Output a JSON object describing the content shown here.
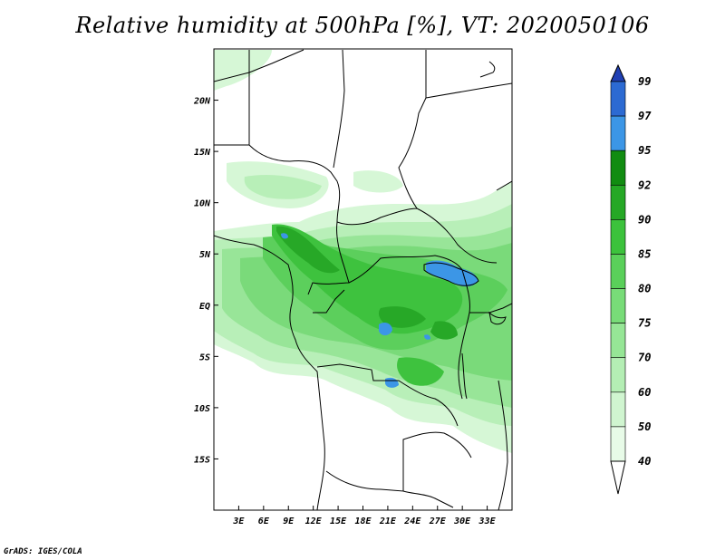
{
  "title": "Relative humidity at 500hPa [%], VT: 2020050106",
  "credit": "GrADS: IGES/COLA",
  "map": {
    "lon_range": [
      0,
      36
    ],
    "lat_range": [
      -20,
      25
    ],
    "x_ticks": [
      {
        "value": 3,
        "label": "3E"
      },
      {
        "value": 6,
        "label": "6E"
      },
      {
        "value": 9,
        "label": "9E"
      },
      {
        "value": 12,
        "label": "12E"
      },
      {
        "value": 15,
        "label": "15E"
      },
      {
        "value": 18,
        "label": "18E"
      },
      {
        "value": 21,
        "label": "21E"
      },
      {
        "value": 24,
        "label": "24E"
      },
      {
        "value": 27,
        "label": "27E"
      },
      {
        "value": 30,
        "label": "30E"
      },
      {
        "value": 33,
        "label": "33E"
      }
    ],
    "y_ticks": [
      {
        "value": 20,
        "label": "20N"
      },
      {
        "value": 15,
        "label": "15N"
      },
      {
        "value": 10,
        "label": "10N"
      },
      {
        "value": 5,
        "label": "5N"
      },
      {
        "value": 0,
        "label": "EQ"
      },
      {
        "value": -5,
        "label": "5S"
      },
      {
        "value": -10,
        "label": "10S"
      },
      {
        "value": -15,
        "label": "15S"
      }
    ]
  },
  "colorbar": {
    "levels": [
      "40",
      "50",
      "60",
      "70",
      "75",
      "80",
      "85",
      "90",
      "92",
      "95",
      "97",
      "99"
    ],
    "colors": [
      "#ffffff",
      "#e8fbe8",
      "#d0f5d0",
      "#b4eeb4",
      "#96e696",
      "#78dc78",
      "#5ad05a",
      "#3cc23c",
      "#25a825",
      "#118c11",
      "#3c96e6",
      "#2c6ad2",
      "#2040b4"
    ]
  }
}
